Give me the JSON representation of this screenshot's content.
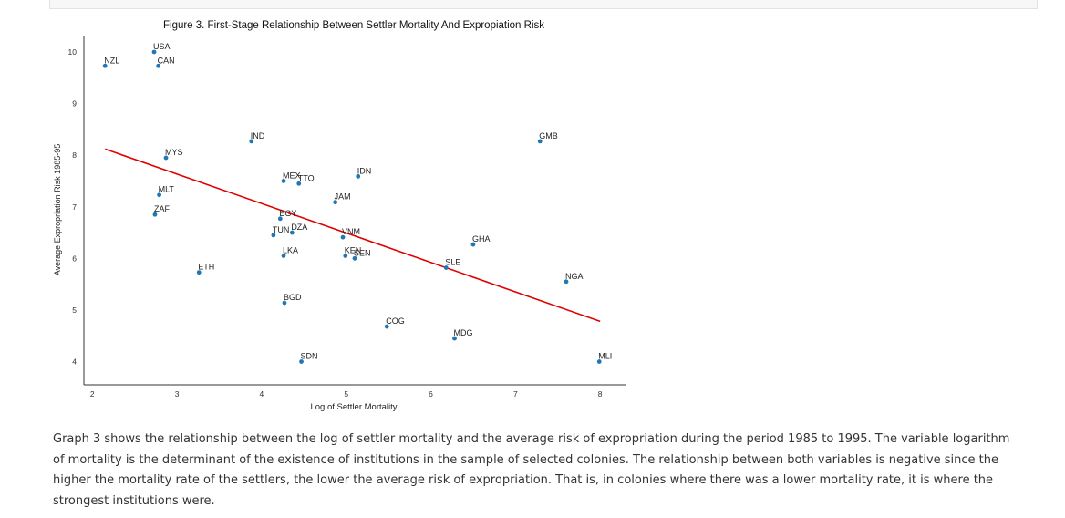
{
  "chart_data": {
    "type": "scatter",
    "title": "Figure 3. First-Stage Relationship Between Settler Mortality And Expropiation Risk",
    "xlabel": "Log of Settler Mortality",
    "ylabel": "Average Expropriation Risk 1985-95",
    "xlim": [
      1.9,
      8.3
    ],
    "ylim": [
      3.55,
      10.3
    ],
    "x_ticks": [
      "2",
      "3",
      "4",
      "5",
      "6",
      "7",
      "8"
    ],
    "y_ticks": [
      "4",
      "5",
      "6",
      "7",
      "8",
      "9",
      "10"
    ],
    "grid": false,
    "point_color": "#1f77b4",
    "fit_color": "#e00000",
    "fit_line": {
      "x": [
        2.15,
        8.0
      ],
      "y": [
        8.12,
        4.78
      ]
    },
    "points": [
      {
        "label": "USA",
        "x": 2.73,
        "y": 10.0
      },
      {
        "label": "CAN",
        "x": 2.78,
        "y": 9.73
      },
      {
        "label": "NZL",
        "x": 2.15,
        "y": 9.73
      },
      {
        "label": "MYS",
        "x": 2.87,
        "y": 7.95
      },
      {
        "label": "MLT",
        "x": 2.79,
        "y": 7.23
      },
      {
        "label": "ZAF",
        "x": 2.74,
        "y": 6.85
      },
      {
        "label": "ETH",
        "x": 3.26,
        "y": 5.73
      },
      {
        "label": "IND",
        "x": 3.88,
        "y": 8.27
      },
      {
        "label": "MEX",
        "x": 4.26,
        "y": 7.5
      },
      {
        "label": "TTO",
        "x": 4.44,
        "y": 7.45
      },
      {
        "label": "IDN",
        "x": 5.14,
        "y": 7.59
      },
      {
        "label": "JAM",
        "x": 4.87,
        "y": 7.09
      },
      {
        "label": "EGY",
        "x": 4.22,
        "y": 6.77
      },
      {
        "label": "TUN",
        "x": 4.14,
        "y": 6.45
      },
      {
        "label": "DZA",
        "x": 4.36,
        "y": 6.5
      },
      {
        "label": "VNM",
        "x": 4.96,
        "y": 6.41
      },
      {
        "label": "LKA",
        "x": 4.26,
        "y": 6.05
      },
      {
        "label": "KEN",
        "x": 4.99,
        "y": 6.05
      },
      {
        "label": "SEN",
        "x": 5.1,
        "y": 6.0
      },
      {
        "label": "GHA",
        "x": 6.5,
        "y": 6.27
      },
      {
        "label": "SLE",
        "x": 6.18,
        "y": 5.82
      },
      {
        "label": "GMB",
        "x": 7.29,
        "y": 8.27
      },
      {
        "label": "NGA",
        "x": 7.6,
        "y": 5.55
      },
      {
        "label": "BGD",
        "x": 4.27,
        "y": 5.14
      },
      {
        "label": "COG",
        "x": 5.48,
        "y": 4.68
      },
      {
        "label": "MDG",
        "x": 6.28,
        "y": 4.45
      },
      {
        "label": "SDN",
        "x": 4.47,
        "y": 4.0
      },
      {
        "label": "MLI",
        "x": 7.99,
        "y": 4.0
      }
    ]
  },
  "caption": "Graph 3 shows the relationship between the log of settler mortality and the average risk of expropriation during the period 1985 to 1995. The variable logarithm of mortality is the determinant of the existence of institutions in the sample of selected colonies. The relationship between both variables is negative since the higher the mortality rate of the settlers, the lower the average risk of expropriation. That is, in colonies where there was a lower mortality rate, it is where the strongest institutions were."
}
